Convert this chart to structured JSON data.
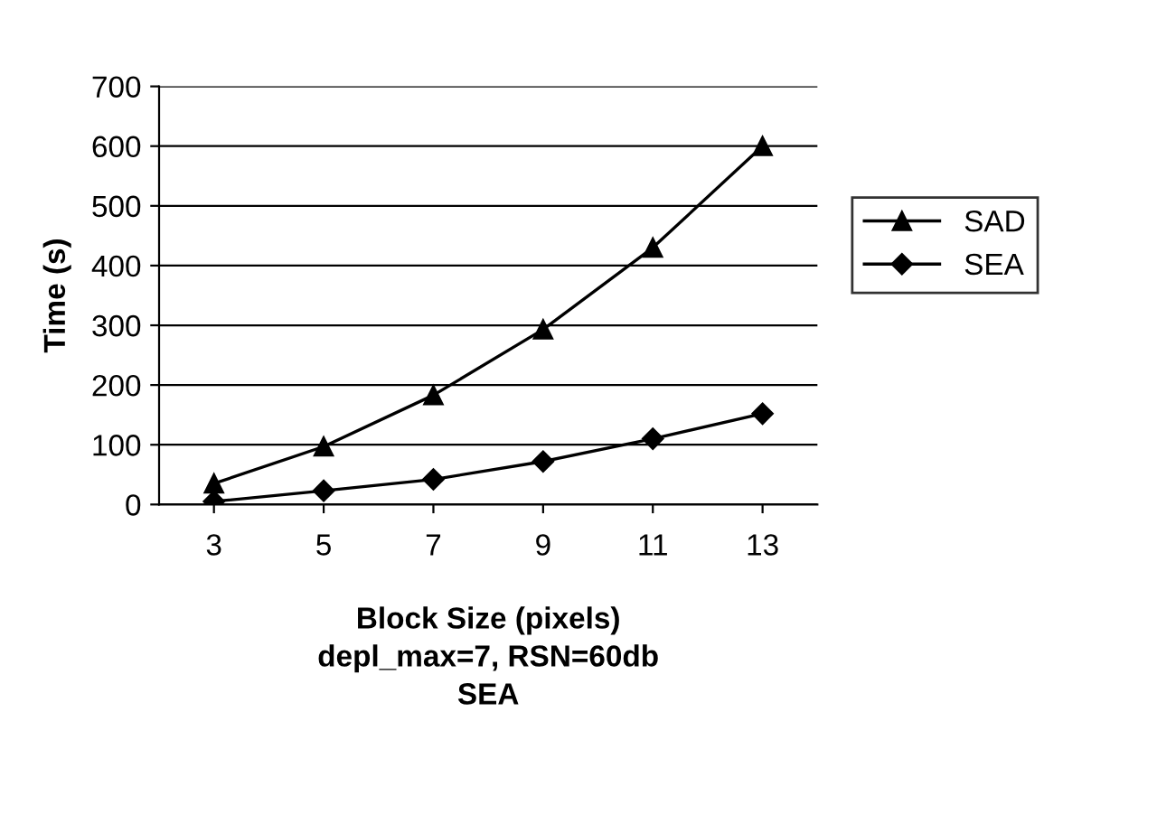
{
  "chart_data": {
    "type": "line",
    "xlabel": "Block Size (pixels)\ndepl_max=7, RSN=60db\nSEA",
    "ylabel": "Time (s)",
    "categories": [
      "3",
      "5",
      "7",
      "9",
      "11",
      "13"
    ],
    "series": [
      {
        "name": "SAD",
        "color": "#000000",
        "marker": "triangle",
        "values": [
          35,
          97,
          183,
          293,
          430,
          600
        ]
      },
      {
        "name": "SEA",
        "color": "#000000",
        "marker": "diamond",
        "values": [
          5,
          23,
          42,
          72,
          110,
          152
        ]
      }
    ],
    "ylim": [
      0,
      700
    ],
    "yticks": [
      0,
      100,
      200,
      300,
      400,
      500,
      600,
      700
    ],
    "grid": "y",
    "legend": "right",
    "line_style": "solid"
  }
}
